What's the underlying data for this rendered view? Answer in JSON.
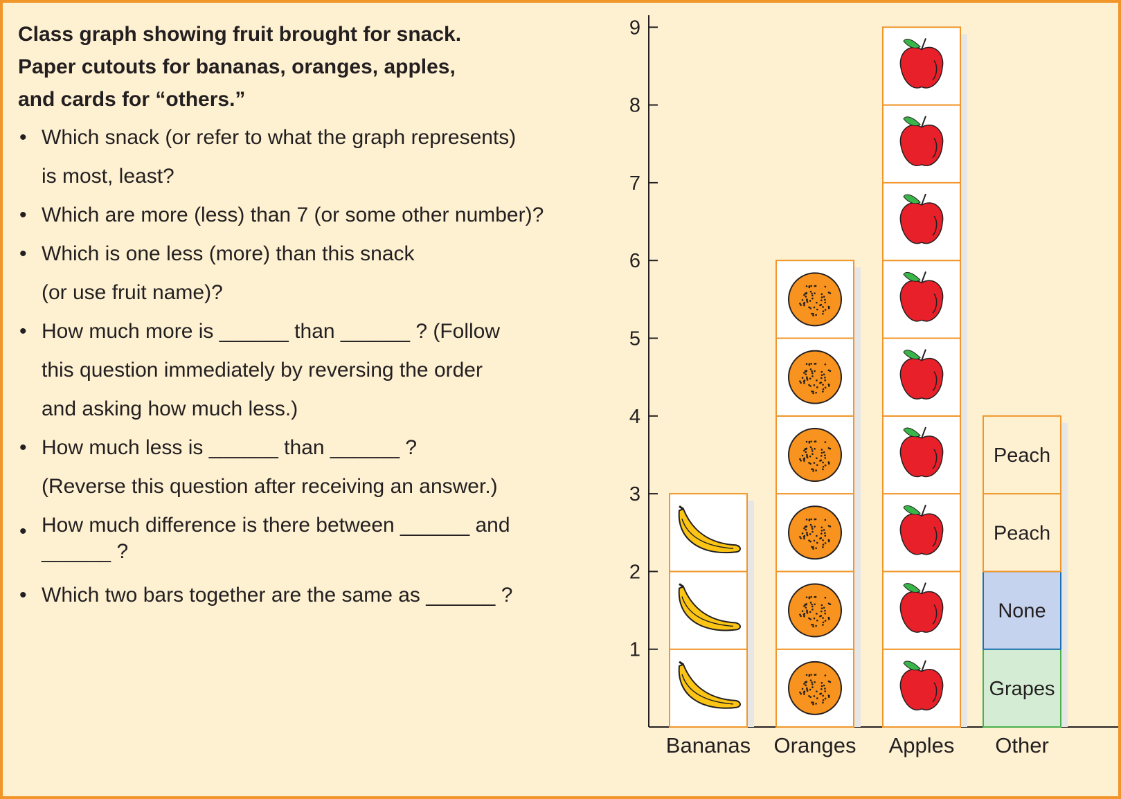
{
  "heading": {
    "line1": "Class graph showing fruit brought for snack.",
    "line2": "Paper cutouts for bananas, oranges, apples,",
    "line3": "and cards for “others.”"
  },
  "questions": [
    {
      "lines": [
        "Which snack (or refer to what the graph represents)",
        "is most, least?"
      ]
    },
    {
      "lines": [
        "Which are more (less) than 7 (or some other number)?"
      ]
    },
    {
      "lines": [
        "Which is one less (more) than this snack",
        "(or use fruit name)?"
      ]
    },
    {
      "lines": [
        "How much more is ______ than ______ ? (Follow",
        "this question immediately by reversing the order",
        "and asking how much less.)"
      ]
    },
    {
      "lines": [
        "How much less is ______ than ______ ?",
        "(Reverse this question after receiving an answer.)"
      ]
    },
    {
      "lines": [
        "How much difference is there between  ______ and",
        "______ ?"
      ]
    },
    {
      "lines": [
        "Which two bars together are the same as ______ ?"
      ]
    }
  ],
  "bullet_char": "•",
  "colors": {
    "background": "#fef1d2",
    "frame": "#f0962a",
    "card_border": "#f0962a",
    "none_card": "#c5d3ee",
    "none_border": "#1a6fb5",
    "grapes_card": "#d3ecd3",
    "grapes_border": "#48b04d",
    "banana": "#fcc516",
    "orange": "#f7931e",
    "apple": "#e8202a",
    "leaf": "#39b54a"
  },
  "chart_data": {
    "type": "bar",
    "categories": [
      "Bananas",
      "Oranges",
      "Apples",
      "Other"
    ],
    "values": [
      3,
      6,
      9,
      4
    ],
    "yticks": [
      1,
      2,
      3,
      4,
      5,
      6,
      7,
      8,
      9
    ],
    "ylim": [
      0,
      9
    ],
    "grid": false,
    "cards": [
      {
        "icon": "banana-icon"
      },
      {
        "icon": "orange-icon"
      },
      {
        "icon": "apple-icon"
      },
      {
        "stack": [
          {
            "label": "Grapes",
            "style": "grapes"
          },
          {
            "label": "None",
            "style": "none"
          },
          {
            "label": "Peach",
            "style": "card"
          },
          {
            "label": "Peach",
            "style": "card"
          }
        ]
      }
    ]
  }
}
